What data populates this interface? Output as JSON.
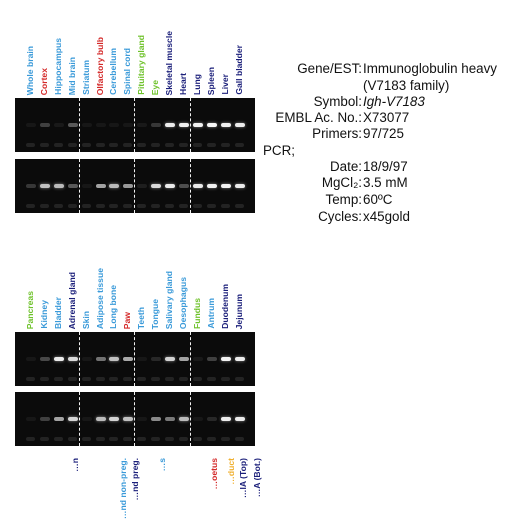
{
  "panel1": {
    "lanes": [
      {
        "label": "Whole brain",
        "color": "#3a9ad9"
      },
      {
        "label": "Cortex",
        "color": "#d42a2a"
      },
      {
        "label": "Hippocampus",
        "color": "#3a9ad9"
      },
      {
        "label": "Mid brain",
        "color": "#3a9ad9"
      },
      {
        "label": "Striatum",
        "color": "#3a9ad9"
      },
      {
        "label": "Olfactory bulb",
        "color": "#d42a2a"
      },
      {
        "label": "Cerebellum",
        "color": "#3a9ad9"
      },
      {
        "label": "Spinal cord",
        "color": "#3a9ad9"
      },
      {
        "label": "Pituitary gland",
        "color": "#6ec22a"
      },
      {
        "label": "Eye",
        "color": "#6ec22a"
      },
      {
        "label": "Skeletal muscle",
        "color": "#1b1f7a"
      },
      {
        "label": "Heart",
        "color": "#1b1f7a"
      },
      {
        "label": "Lung",
        "color": "#1b1f7a"
      },
      {
        "label": "Spleen",
        "color": "#1b1f7a"
      },
      {
        "label": "Liver",
        "color": "#1b1f7a"
      },
      {
        "label": "Gall bladder",
        "color": "#1b1f7a"
      }
    ],
    "gel_top": [
      0.05,
      0.22,
      0.06,
      0.32,
      0.05,
      0.05,
      0.05,
      0.05,
      0.06,
      0.18,
      0.93,
      0.95,
      0.95,
      0.97,
      0.95,
      0.93
    ],
    "gel_bottom": [
      0.18,
      0.75,
      0.72,
      0.32,
      0.05,
      0.62,
      0.72,
      0.58,
      0.08,
      0.85,
      0.92,
      0.28,
      0.92,
      0.95,
      0.95,
      0.92
    ]
  },
  "panel2": {
    "lanes": [
      {
        "label": "Pancreas",
        "color": "#6ec22a"
      },
      {
        "label": "Kidney",
        "color": "#3a9ad9"
      },
      {
        "label": "Bladder",
        "color": "#3a9ad9"
      },
      {
        "label": "Adrenal gland",
        "color": "#1b1f7a"
      },
      {
        "label": "Skin",
        "color": "#3a9ad9"
      },
      {
        "label": "Adipose tissue",
        "color": "#3a9ad9"
      },
      {
        "label": "Long bone",
        "color": "#3a9ad9"
      },
      {
        "label": "Paw",
        "color": "#d42a2a"
      },
      {
        "label": "Teeth",
        "color": "#3a9ad9"
      },
      {
        "label": "Tongue",
        "color": "#3a9ad9"
      },
      {
        "label": "Salivary gland",
        "color": "#3a9ad9"
      },
      {
        "label": "Oesophagus",
        "color": "#3a9ad9"
      },
      {
        "label": "Fundus",
        "color": "#6ec22a"
      },
      {
        "label": "Antrum",
        "color": "#3a9ad9"
      },
      {
        "label": "Duodenum",
        "color": "#1b1f7a"
      },
      {
        "label": "Jejunum",
        "color": "#1b1f7a"
      }
    ],
    "gel_top": [
      0.05,
      0.25,
      0.92,
      0.85,
      0.05,
      0.42,
      0.75,
      0.65,
      0.05,
      0.12,
      0.82,
      0.62,
      0.06,
      0.22,
      0.95,
      0.93
    ],
    "gel_bottom": [
      0.05,
      0.22,
      0.62,
      0.82,
      0.05,
      0.72,
      0.82,
      0.75,
      0.05,
      0.52,
      0.45,
      0.72,
      0.05,
      0.12,
      0.93,
      0.92
    ]
  },
  "panel3": {
    "lanes": [
      {
        "label": "…n",
        "color": "#1b1f7a"
      },
      {
        "label": "…nd non-preg.",
        "color": "#3a9ad9"
      },
      {
        "label": "…nd preg.",
        "color": "#1b1f7a"
      },
      {
        "label": "…s",
        "color": "#3a9ad9"
      },
      {
        "label": "…oetus",
        "color": "#d42a2a"
      },
      {
        "label": "…duct",
        "color": "#f0b030"
      },
      {
        "label": "…IA (Top)",
        "color": "#1b1f7a"
      },
      {
        "label": "…A (Bot.)",
        "color": "#1b1f7a"
      }
    ]
  },
  "info": [
    {
      "key": "Gene/EST:",
      "value": "Immunoglobulin heavy",
      "italic": false
    },
    {
      "key": "",
      "value": "(V7183 family)",
      "italic": false
    },
    {
      "key": "Symbol:",
      "value": "Igh-V7183",
      "italic": true
    },
    {
      "key": "EMBL Ac. No.:",
      "value": "X73077",
      "italic": false
    },
    {
      "key": "Primers:",
      "value": "97/725",
      "italic": false
    },
    {
      "key": "PCR;",
      "value": "",
      "italic": false
    },
    {
      "key": "Date:",
      "value": "18/9/97",
      "italic": false
    },
    {
      "key": "MgCl₂:",
      "value": "3.5 mM",
      "italic": false
    },
    {
      "key": "Temp:",
      "value": "60ºC",
      "italic": false
    },
    {
      "key": "Cycles:",
      "value": "x45gold",
      "italic": false
    }
  ],
  "colors": {
    "gel_background": "#0b0b0b",
    "band": "#ffffff"
  }
}
